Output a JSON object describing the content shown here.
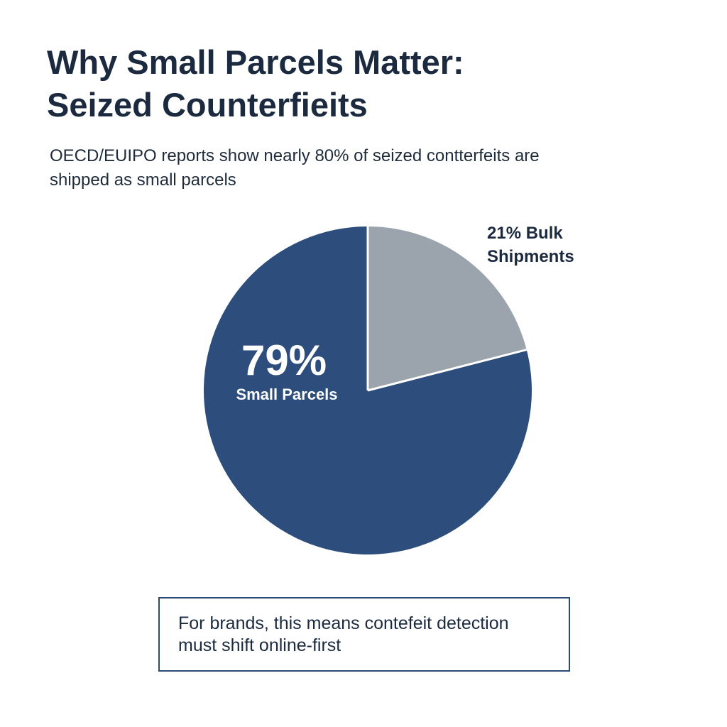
{
  "title_lines": [
    "Why Small Parcels Matter:",
    "Seized Counterfieits"
  ],
  "subtitle_lines": [
    "OECD/EUIPO reports show nearly 80% of seized contterfeits are",
    "shipped as small parcels"
  ],
  "chart_data": {
    "type": "pie",
    "slices": [
      {
        "value": 79,
        "value_label": "79%",
        "label": "Small Parcels",
        "color": "#2d4d7c"
      },
      {
        "value": 21,
        "value_label": "21% Bulk",
        "label": "Shipments",
        "color": "#9ba3ad"
      }
    ]
  },
  "callout_lines": [
    "For brands, this means contefeit detection",
    "must shift online-first"
  ]
}
